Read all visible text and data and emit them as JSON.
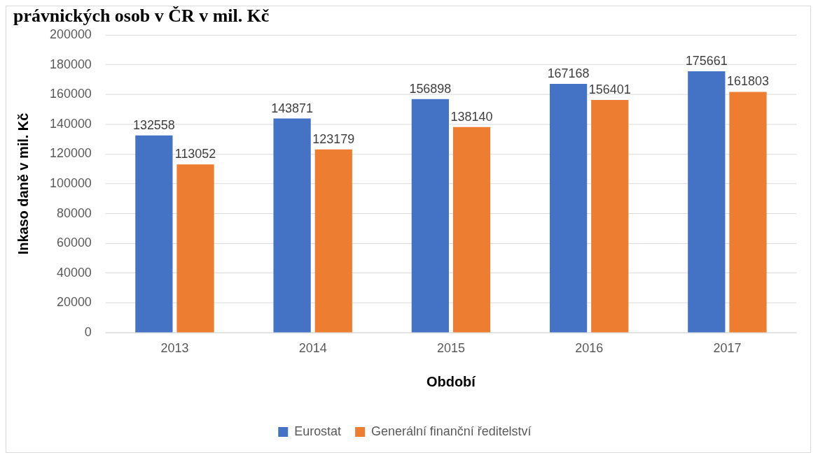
{
  "chart_data": {
    "type": "bar",
    "title": "právnických osob v ČR v mil. Kč",
    "xlabel": "Období",
    "ylabel": "Inkaso daně v mil. Kč",
    "categories": [
      "2013",
      "2014",
      "2015",
      "2016",
      "2017"
    ],
    "series": [
      {
        "name": "Eurostat",
        "color": "#4472c4",
        "values": [
          132558,
          143871,
          156898,
          167168,
          175661
        ]
      },
      {
        "name": "Generální finanční ředitelství",
        "color": "#ed7d31",
        "values": [
          113052,
          123179,
          138140,
          156401,
          161803
        ]
      }
    ],
    "ylim": [
      0,
      200000
    ],
    "yticks": [
      0,
      20000,
      40000,
      60000,
      80000,
      100000,
      120000,
      140000,
      160000,
      180000,
      200000
    ],
    "grid": "y",
    "legend": "bottom",
    "data_labels": true
  }
}
